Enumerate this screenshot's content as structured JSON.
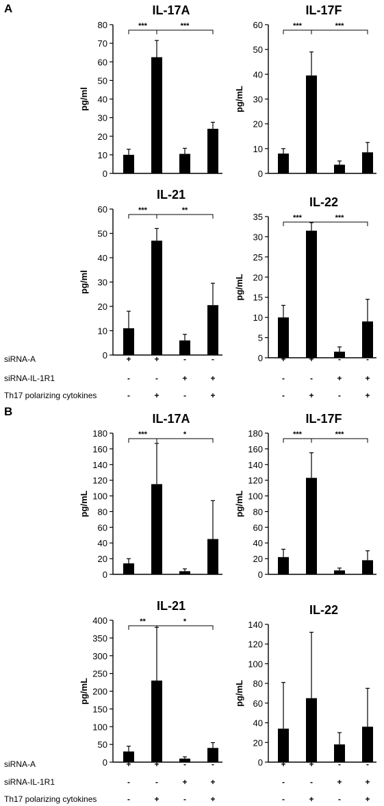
{
  "panels": [
    {
      "label": "A",
      "row_labels": [
        "siRNA-A",
        "siRNA-IL-1R1",
        "Th17 polarizing cytokines"
      ]
    },
    {
      "label": "B",
      "row_labels": [
        "siRNA-A",
        "siRNA-IL-1R1",
        "Th17 polarizing cytokines"
      ]
    }
  ],
  "conditions": {
    "siRNA-A": [
      "+",
      "+",
      "-",
      "-"
    ],
    "siRNA-IL-1R1": [
      "-",
      "-",
      "+",
      "+"
    ],
    "Th17 polarizing cytokines": [
      "-",
      "+",
      "-",
      "+"
    ]
  },
  "colors": {
    "bar": "#000000",
    "axis": "#000000",
    "background": "#ffffff"
  },
  "chart_data": [
    {
      "panel": "A",
      "type": "bar",
      "title": "IL-17A",
      "ylabel": "pg/ml",
      "ylim": [
        0,
        80
      ],
      "yticks": [
        0,
        10,
        20,
        30,
        40,
        50,
        60,
        70,
        80
      ],
      "categories": [
        "1",
        "2",
        "3",
        "4"
      ],
      "values": [
        10,
        62.5,
        10.5,
        24
      ],
      "errors": [
        3,
        9,
        3,
        3.5
      ],
      "significance": [
        {
          "from": 0,
          "to": 1,
          "label": "***"
        },
        {
          "from": 1,
          "to": 3,
          "label": "***"
        }
      ]
    },
    {
      "panel": "A",
      "type": "bar",
      "title": "IL-17F",
      "ylabel": "pg/mL",
      "ylim": [
        0,
        60
      ],
      "yticks": [
        0,
        10,
        20,
        30,
        40,
        50,
        60
      ],
      "categories": [
        "1",
        "2",
        "3",
        "4"
      ],
      "values": [
        8,
        39.5,
        3.5,
        8.5
      ],
      "errors": [
        2,
        9.5,
        1.5,
        4
      ],
      "significance": [
        {
          "from": 0,
          "to": 1,
          "label": "***"
        },
        {
          "from": 1,
          "to": 3,
          "label": "***"
        }
      ]
    },
    {
      "panel": "A",
      "type": "bar",
      "title": "IL-21",
      "ylabel": "pg/ml",
      "ylim": [
        0,
        60
      ],
      "yticks": [
        0,
        10,
        20,
        30,
        40,
        50,
        60
      ],
      "categories": [
        "1",
        "2",
        "3",
        "4"
      ],
      "values": [
        11,
        47,
        6,
        20.5
      ],
      "errors": [
        7,
        5,
        2.5,
        9
      ],
      "significance": [
        {
          "from": 0,
          "to": 1,
          "label": "***"
        },
        {
          "from": 1,
          "to": 3,
          "label": "**"
        }
      ]
    },
    {
      "panel": "A",
      "type": "bar",
      "title": "IL-22",
      "ylabel": "pg/mL",
      "ylim": [
        0,
        35
      ],
      "yticks": [
        0,
        5,
        10,
        15,
        20,
        25,
        30,
        35
      ],
      "categories": [
        "1",
        "2",
        "3",
        "4"
      ],
      "values": [
        10,
        31.5,
        1.5,
        9
      ],
      "errors": [
        3,
        2,
        1.2,
        5.5
      ],
      "significance": [
        {
          "from": 0,
          "to": 1,
          "label": "***"
        },
        {
          "from": 1,
          "to": 3,
          "label": "***"
        }
      ]
    },
    {
      "panel": "B",
      "type": "bar",
      "title": "IL-17A",
      "ylabel": "pg/mL",
      "ylim": [
        0,
        180
      ],
      "yticks": [
        0,
        20,
        40,
        60,
        80,
        100,
        120,
        140,
        160,
        180
      ],
      "categories": [
        "1",
        "2",
        "3",
        "4"
      ],
      "values": [
        14,
        115,
        4,
        45
      ],
      "errors": [
        6,
        52,
        3,
        49
      ],
      "significance": [
        {
          "from": 0,
          "to": 1,
          "label": "***"
        },
        {
          "from": 1,
          "to": 3,
          "label": "*"
        }
      ]
    },
    {
      "panel": "B",
      "type": "bar",
      "title": "IL-17F",
      "ylabel": "pg/mL",
      "ylim": [
        0,
        180
      ],
      "yticks": [
        0,
        20,
        40,
        60,
        80,
        100,
        120,
        140,
        160,
        180
      ],
      "categories": [
        "1",
        "2",
        "3",
        "4"
      ],
      "values": [
        22,
        123,
        5,
        18
      ],
      "errors": [
        10,
        32,
        3,
        12
      ],
      "significance": [
        {
          "from": 0,
          "to": 1,
          "label": "***"
        },
        {
          "from": 1,
          "to": 3,
          "label": "***"
        }
      ]
    },
    {
      "panel": "B",
      "type": "bar",
      "title": "IL-21",
      "ylabel": "pg/mL",
      "ylim": [
        0,
        400
      ],
      "yticks": [
        0,
        50,
        100,
        150,
        200,
        250,
        300,
        350,
        400
      ],
      "categories": [
        "1",
        "2",
        "3",
        "4"
      ],
      "values": [
        30,
        230,
        10,
        40
      ],
      "errors": [
        15,
        150,
        5,
        15
      ],
      "significance": [
        {
          "from": 0,
          "to": 1,
          "label": "**"
        },
        {
          "from": 1,
          "to": 3,
          "label": "*"
        }
      ]
    },
    {
      "panel": "B",
      "type": "bar",
      "title": "IL-22",
      "ylabel": "pg/mL",
      "ylim": [
        0,
        140
      ],
      "yticks": [
        0,
        20,
        40,
        60,
        80,
        100,
        120,
        140
      ],
      "categories": [
        "1",
        "2",
        "3",
        "4"
      ],
      "values": [
        34,
        65,
        18,
        36
      ],
      "errors": [
        47,
        67,
        12,
        39
      ],
      "significance": []
    }
  ]
}
